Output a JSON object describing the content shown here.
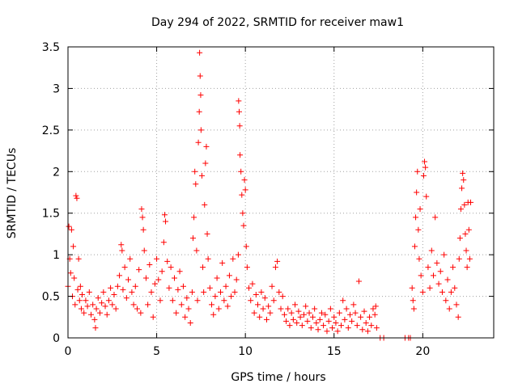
{
  "chart_data": {
    "type": "scatter",
    "title": "Day 294 of 2022, SRMTID for receiver maw1",
    "xlabel": "GPS time / hours",
    "ylabel": "SRMTID / TECUs",
    "xlim": [
      0,
      24
    ],
    "ylim": [
      0,
      3.5
    ],
    "xticks": [
      0,
      5,
      10,
      15,
      20
    ],
    "xtick_labels": [
      "0",
      "5",
      "10",
      "15",
      "20"
    ],
    "yticks": [
      0,
      0.5,
      1,
      1.5,
      2,
      2.5,
      3,
      3.5
    ],
    "ytick_labels": [
      "0",
      "0.5",
      "1",
      "1.5",
      "2",
      "2.5",
      "3",
      "3.5"
    ],
    "grid": true,
    "marker": "+",
    "series_color": "#ff0000",
    "series": [
      {
        "name": "maw1",
        "points": [
          [
            0.0,
            0.62
          ],
          [
            0.05,
            1.34
          ],
          [
            0.1,
            0.95
          ],
          [
            0.15,
            0.78
          ],
          [
            0.2,
            1.3
          ],
          [
            0.25,
            0.5
          ],
          [
            0.3,
            1.1
          ],
          [
            0.35,
            0.72
          ],
          [
            0.4,
            0.4
          ],
          [
            0.45,
            1.71
          ],
          [
            0.5,
            1.68
          ],
          [
            0.55,
            0.58
          ],
          [
            0.6,
            0.95
          ],
          [
            0.65,
            0.45
          ],
          [
            0.7,
            0.62
          ],
          [
            0.75,
            0.35
          ],
          [
            0.8,
            0.52
          ],
          [
            0.9,
            0.3
          ],
          [
            1.0,
            0.45
          ],
          [
            1.1,
            0.38
          ],
          [
            1.2,
            0.55
          ],
          [
            1.3,
            0.28
          ],
          [
            1.4,
            0.4
          ],
          [
            1.5,
            0.22
          ],
          [
            1.55,
            0.12
          ],
          [
            1.6,
            0.35
          ],
          [
            1.7,
            0.48
          ],
          [
            1.8,
            0.3
          ],
          [
            1.9,
            0.42
          ],
          [
            2.0,
            0.55
          ],
          [
            2.1,
            0.38
          ],
          [
            2.2,
            0.28
          ],
          [
            2.3,
            0.45
          ],
          [
            2.4,
            0.6
          ],
          [
            2.5,
            0.4
          ],
          [
            2.6,
            0.52
          ],
          [
            2.7,
            0.35
          ],
          [
            2.8,
            0.62
          ],
          [
            2.9,
            0.75
          ],
          [
            3.0,
            1.12
          ],
          [
            3.05,
            1.05
          ],
          [
            3.1,
            0.58
          ],
          [
            3.2,
            0.85
          ],
          [
            3.3,
            0.48
          ],
          [
            3.4,
            0.7
          ],
          [
            3.5,
            0.95
          ],
          [
            3.6,
            0.55
          ],
          [
            3.7,
            0.4
          ],
          [
            3.8,
            0.62
          ],
          [
            3.9,
            0.35
          ],
          [
            4.0,
            0.82
          ],
          [
            4.1,
            0.3
          ],
          [
            4.15,
            1.55
          ],
          [
            4.2,
            1.45
          ],
          [
            4.25,
            1.3
          ],
          [
            4.3,
            1.05
          ],
          [
            4.4,
            0.72
          ],
          [
            4.5,
            0.4
          ],
          [
            4.6,
            0.88
          ],
          [
            4.7,
            0.55
          ],
          [
            4.8,
            0.25
          ],
          [
            4.9,
            0.65
          ],
          [
            5.0,
            0.95
          ],
          [
            5.1,
            0.7
          ],
          [
            5.2,
            0.45
          ],
          [
            5.3,
            0.8
          ],
          [
            5.4,
            1.15
          ],
          [
            5.45,
            1.48
          ],
          [
            5.5,
            1.4
          ],
          [
            5.6,
            0.92
          ],
          [
            5.7,
            0.6
          ],
          [
            5.8,
            0.85
          ],
          [
            5.9,
            0.45
          ],
          [
            6.0,
            0.72
          ],
          [
            6.1,
            0.3
          ],
          [
            6.2,
            0.58
          ],
          [
            6.3,
            0.8
          ],
          [
            6.4,
            0.4
          ],
          [
            6.5,
            0.62
          ],
          [
            6.6,
            0.25
          ],
          [
            6.7,
            0.48
          ],
          [
            6.8,
            0.35
          ],
          [
            6.9,
            0.18
          ],
          [
            7.0,
            0.55
          ],
          [
            7.05,
            1.2
          ],
          [
            7.1,
            1.45
          ],
          [
            7.15,
            2.0
          ],
          [
            7.2,
            1.85
          ],
          [
            7.25,
            1.05
          ],
          [
            7.3,
            0.45
          ],
          [
            7.35,
            2.35
          ],
          [
            7.4,
            2.72
          ],
          [
            7.42,
            3.43
          ],
          [
            7.45,
            3.15
          ],
          [
            7.48,
            2.92
          ],
          [
            7.5,
            2.5
          ],
          [
            7.55,
            1.95
          ],
          [
            7.6,
            0.85
          ],
          [
            7.65,
            0.55
          ],
          [
            7.7,
            1.6
          ],
          [
            7.75,
            2.1
          ],
          [
            7.8,
            2.3
          ],
          [
            7.85,
            1.25
          ],
          [
            7.9,
            0.95
          ],
          [
            8.0,
            0.6
          ],
          [
            8.1,
            0.4
          ],
          [
            8.2,
            0.28
          ],
          [
            8.3,
            0.5
          ],
          [
            8.4,
            0.72
          ],
          [
            8.5,
            0.35
          ],
          [
            8.6,
            0.55
          ],
          [
            8.7,
            0.9
          ],
          [
            8.8,
            0.45
          ],
          [
            8.9,
            0.62
          ],
          [
            9.0,
            0.38
          ],
          [
            9.1,
            0.75
          ],
          [
            9.2,
            0.5
          ],
          [
            9.3,
            0.95
          ],
          [
            9.4,
            0.55
          ],
          [
            9.5,
            0.7
          ],
          [
            9.6,
            1.0
          ],
          [
            9.62,
            2.85
          ],
          [
            9.65,
            2.72
          ],
          [
            9.68,
            2.55
          ],
          [
            9.7,
            2.2
          ],
          [
            9.75,
            2.0
          ],
          [
            9.8,
            1.72
          ],
          [
            9.85,
            1.5
          ],
          [
            9.9,
            1.35
          ],
          [
            9.95,
            1.9
          ],
          [
            10.0,
            1.78
          ],
          [
            10.05,
            1.1
          ],
          [
            10.1,
            0.85
          ],
          [
            10.2,
            0.6
          ],
          [
            10.3,
            0.45
          ],
          [
            10.4,
            0.65
          ],
          [
            10.5,
            0.3
          ],
          [
            10.6,
            0.52
          ],
          [
            10.7,
            0.4
          ],
          [
            10.8,
            0.25
          ],
          [
            10.9,
            0.55
          ],
          [
            11.0,
            0.35
          ],
          [
            11.1,
            0.48
          ],
          [
            11.2,
            0.22
          ],
          [
            11.3,
            0.38
          ],
          [
            11.4,
            0.3
          ],
          [
            11.5,
            0.62
          ],
          [
            11.6,
            0.45
          ],
          [
            11.7,
            0.85
          ],
          [
            11.8,
            0.92
          ],
          [
            11.9,
            0.55
          ],
          [
            12.0,
            0.35
          ],
          [
            12.1,
            0.5
          ],
          [
            12.2,
            0.28
          ],
          [
            12.3,
            0.2
          ],
          [
            12.4,
            0.35
          ],
          [
            12.5,
            0.15
          ],
          [
            12.6,
            0.3
          ],
          [
            12.7,
            0.22
          ],
          [
            12.8,
            0.4
          ],
          [
            12.9,
            0.18
          ],
          [
            13.0,
            0.32
          ],
          [
            13.1,
            0.25
          ],
          [
            13.2,
            0.15
          ],
          [
            13.3,
            0.28
          ],
          [
            13.4,
            0.38
          ],
          [
            13.5,
            0.2
          ],
          [
            13.6,
            0.3
          ],
          [
            13.7,
            0.12
          ],
          [
            13.8,
            0.25
          ],
          [
            13.9,
            0.35
          ],
          [
            14.0,
            0.18
          ],
          [
            14.1,
            0.1
          ],
          [
            14.2,
            0.22
          ],
          [
            14.3,
            0.3
          ],
          [
            14.4,
            0.15
          ],
          [
            14.5,
            0.28
          ],
          [
            14.6,
            0.08
          ],
          [
            14.7,
            0.2
          ],
          [
            14.8,
            0.35
          ],
          [
            14.9,
            0.12
          ],
          [
            15.0,
            0.25
          ],
          [
            15.1,
            0.18
          ],
          [
            15.2,
            0.08
          ],
          [
            15.3,
            0.3
          ],
          [
            15.4,
            0.15
          ],
          [
            15.5,
            0.45
          ],
          [
            15.6,
            0.22
          ],
          [
            15.7,
            0.35
          ],
          [
            15.8,
            0.12
          ],
          [
            15.9,
            0.28
          ],
          [
            16.0,
            0.2
          ],
          [
            16.1,
            0.4
          ],
          [
            16.2,
            0.3
          ],
          [
            16.3,
            0.15
          ],
          [
            16.4,
            0.68
          ],
          [
            16.5,
            0.25
          ],
          [
            16.6,
            0.1
          ],
          [
            16.7,
            0.32
          ],
          [
            16.8,
            0.18
          ],
          [
            16.9,
            0.08
          ],
          [
            17.0,
            0.25
          ],
          [
            17.1,
            0.15
          ],
          [
            17.2,
            0.35
          ],
          [
            17.3,
            0.28
          ],
          [
            17.35,
            0.38
          ],
          [
            17.4,
            0.12
          ],
          [
            17.6,
            0.0
          ],
          [
            17.8,
            0.0
          ],
          [
            19.0,
            0.0
          ],
          [
            19.2,
            0.0
          ],
          [
            19.3,
            0.0
          ],
          [
            19.4,
            0.6
          ],
          [
            19.45,
            0.45
          ],
          [
            19.5,
            0.35
          ],
          [
            19.55,
            1.1
          ],
          [
            19.6,
            1.45
          ],
          [
            19.65,
            1.75
          ],
          [
            19.7,
            2.0
          ],
          [
            19.75,
            1.3
          ],
          [
            19.8,
            0.95
          ],
          [
            19.85,
            1.55
          ],
          [
            19.9,
            0.75
          ],
          [
            20.0,
            0.55
          ],
          [
            20.05,
            1.95
          ],
          [
            20.1,
            2.12
          ],
          [
            20.15,
            2.05
          ],
          [
            20.2,
            1.7
          ],
          [
            20.3,
            0.85
          ],
          [
            20.4,
            0.6
          ],
          [
            20.5,
            1.05
          ],
          [
            20.6,
            0.75
          ],
          [
            20.7,
            1.45
          ],
          [
            20.8,
            0.9
          ],
          [
            20.9,
            0.65
          ],
          [
            21.0,
            0.8
          ],
          [
            21.1,
            0.55
          ],
          [
            21.2,
            1.0
          ],
          [
            21.3,
            0.45
          ],
          [
            21.4,
            0.7
          ],
          [
            21.5,
            0.35
          ],
          [
            21.6,
            0.55
          ],
          [
            21.7,
            0.85
          ],
          [
            21.8,
            0.6
          ],
          [
            21.9,
            0.4
          ],
          [
            22.0,
            0.25
          ],
          [
            22.05,
            0.95
          ],
          [
            22.1,
            1.2
          ],
          [
            22.15,
            1.55
          ],
          [
            22.2,
            1.8
          ],
          [
            22.25,
            1.98
          ],
          [
            22.3,
            1.9
          ],
          [
            22.35,
            1.6
          ],
          [
            22.4,
            1.25
          ],
          [
            22.45,
            1.05
          ],
          [
            22.5,
            0.85
          ],
          [
            22.55,
            1.63
          ],
          [
            22.6,
            1.3
          ],
          [
            22.65,
            0.95
          ],
          [
            22.7,
            1.63
          ]
        ]
      }
    ]
  }
}
